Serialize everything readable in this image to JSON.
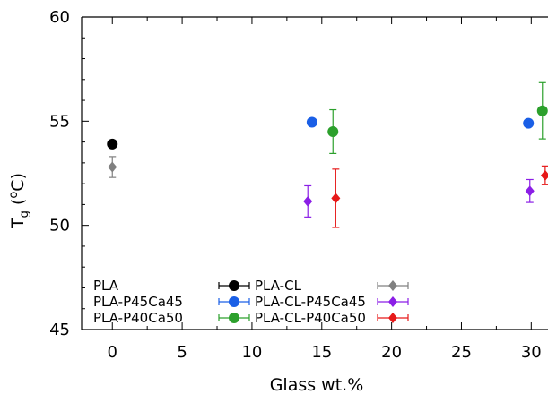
{
  "chart_data": {
    "type": "scatter",
    "xlabel": "Glass wt.%",
    "ylabel": {
      "base": "T",
      "sub": "g",
      "rest": " (",
      "sup": "o",
      "unit": "C)"
    },
    "xlim": [
      -2.2,
      31.2
    ],
    "ylim": [
      45,
      60
    ],
    "xticks": [
      0,
      5,
      10,
      15,
      20,
      25,
      30
    ],
    "yticks": [
      45,
      50,
      55,
      60
    ],
    "x_minor_step": 2.5,
    "y_minor_step": 1,
    "grid": false,
    "legend_position": "bottom-left",
    "series": [
      {
        "name": "PLA",
        "color": "#000000",
        "marker": "circle",
        "points": [
          {
            "x": 0,
            "y": 53.9,
            "err": 0
          }
        ]
      },
      {
        "name": "PLA-P45Ca45",
        "color": "#1a5fe6",
        "marker": "circle",
        "points": [
          {
            "x": 14.3,
            "y": 54.95,
            "err": 0
          },
          {
            "x": 29.8,
            "y": 54.9,
            "err": 0
          }
        ]
      },
      {
        "name": "PLA-P40Ca50",
        "color": "#2ca02c",
        "marker": "circle",
        "points": [
          {
            "x": 15.8,
            "y": 54.5,
            "err": 1.05
          },
          {
            "x": 30.8,
            "y": 55.5,
            "err": 1.35
          }
        ]
      },
      {
        "name": "PLA-CL",
        "color": "#808080",
        "marker": "diamond",
        "points": [
          {
            "x": 0,
            "y": 52.8,
            "err": 0.5
          }
        ]
      },
      {
        "name": "PLA-CL-P45Ca45",
        "color": "#8b1ee6",
        "marker": "diamond",
        "points": [
          {
            "x": 14.0,
            "y": 51.15,
            "err": 0.75
          },
          {
            "x": 29.9,
            "y": 51.65,
            "err": 0.55
          }
        ]
      },
      {
        "name": "PLA-CL-P40Ca50",
        "color": "#e61919",
        "marker": "diamond",
        "points": [
          {
            "x": 16.0,
            "y": 51.3,
            "err": 1.4
          },
          {
            "x": 31.0,
            "y": 52.4,
            "err": 0.45
          }
        ]
      }
    ]
  }
}
